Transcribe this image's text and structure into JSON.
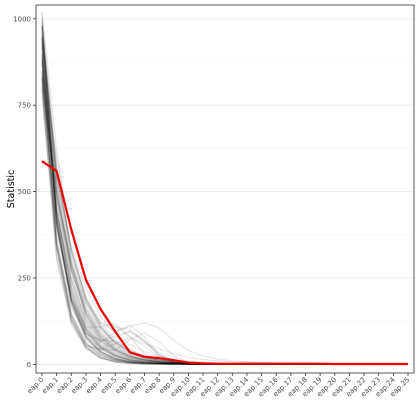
{
  "chart_data": {
    "type": "line",
    "title": "",
    "xlabel": "",
    "ylabel": "Statistic",
    "ylim": [
      -25,
      1040
    ],
    "y_ticks": [
      0,
      250,
      500,
      750,
      1000
    ],
    "y_tick_labels": [
      "0",
      "250",
      "500",
      "750",
      "1000"
    ],
    "grid": true,
    "legend": "none",
    "categories": [
      "eap.0",
      "eap.1",
      "eap.2",
      "eap.3",
      "eap.4",
      "eap.5",
      "eap.6",
      "eap.7",
      "eap.8",
      "eap.9",
      "eap.10",
      "eap.11",
      "eap.12",
      "eap.13",
      "eap.14",
      "eap.15",
      "eap.16",
      "eap.17",
      "eap.18",
      "eap.19",
      "eap.20",
      "eap.21",
      "eap.22",
      "eap.23",
      "eap.24",
      "eap.25"
    ],
    "highlight_series": {
      "color": "#ee0000",
      "values": [
        588,
        560,
        390,
        245,
        160,
        95,
        35,
        22,
        18,
        12,
        5,
        3,
        2,
        2,
        2,
        2,
        2,
        2,
        2,
        2,
        1,
        1,
        1,
        1,
        1,
        1
      ]
    },
    "background_series": {
      "color": "#000000",
      "count": 60,
      "start_range": [
        770,
        1020
      ],
      "note_values": [
        [
          1020,
          620,
          300,
          140,
          70,
          40,
          20,
          12,
          8,
          6,
          4,
          3,
          3,
          2,
          2,
          2,
          2,
          1,
          1,
          1,
          1,
          1,
          1,
          1,
          1,
          1
        ],
        [
          960,
          560,
          330,
          190,
          120,
          95,
          110,
          120,
          105,
          70,
          40,
          25,
          15,
          10,
          8,
          6,
          5,
          4,
          3,
          3,
          2,
          2,
          2,
          2,
          2,
          2
        ],
        [
          900,
          450,
          240,
          120,
          60,
          30,
          18,
          10,
          6,
          4,
          3,
          2,
          2,
          2,
          1,
          1,
          1,
          1,
          1,
          1,
          1,
          1,
          1,
          1,
          1,
          1
        ],
        [
          850,
          600,
          380,
          240,
          160,
          110,
          80,
          60,
          45,
          30,
          20,
          14,
          10,
          8,
          6,
          5,
          4,
          3,
          3,
          2,
          2,
          2,
          2,
          2,
          2,
          2
        ]
      ]
    },
    "colors": {
      "panel_border": "#333333",
      "grid": "#ebebeb",
      "tick_text": "#4d4d4d"
    }
  }
}
